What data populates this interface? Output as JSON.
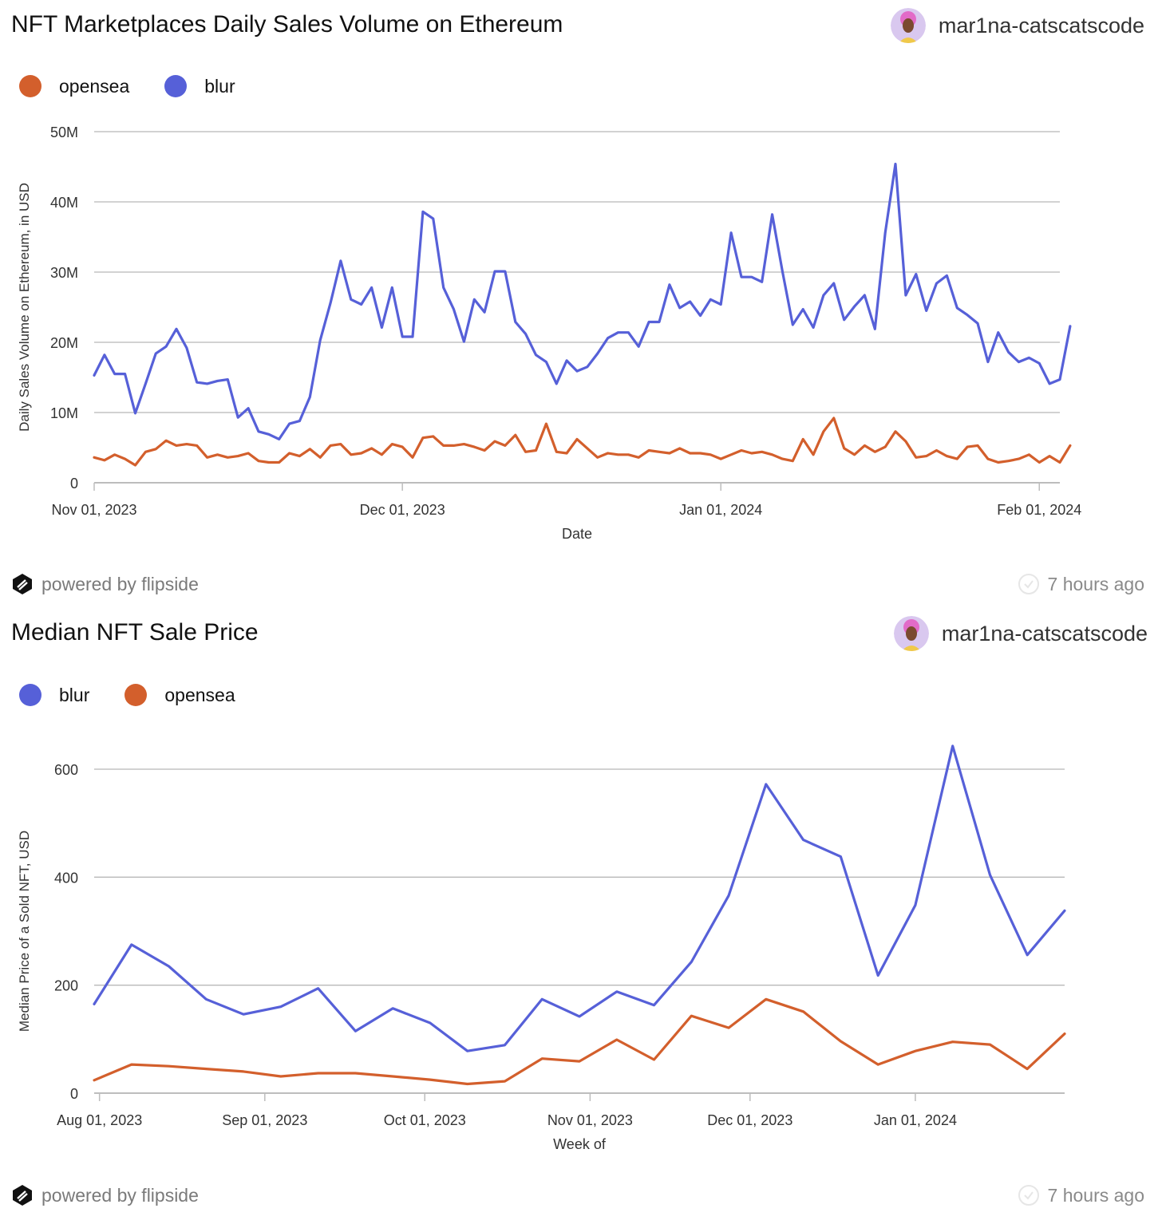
{
  "charts": [
    {
      "title": "NFT Marketplaces Daily Sales Volume on Ethereum",
      "author": "mar1na-catscatscode",
      "legend": [
        {
          "label": "opensea",
          "color": "#d35f2c"
        },
        {
          "label": "blur",
          "color": "#5660d8"
        }
      ],
      "footer": {
        "powered_by": "powered by flipside",
        "updated": "7 hours ago"
      }
    },
    {
      "title": "Median NFT Sale Price",
      "author": "mar1na-catscatscode",
      "legend": [
        {
          "label": "blur",
          "color": "#5660d8"
        },
        {
          "label": "opensea",
          "color": "#d35f2c"
        }
      ],
      "footer": {
        "powered_by": "powered by flipside",
        "updated": "7 hours ago"
      }
    }
  ],
  "chart_data": [
    {
      "type": "line",
      "title": "NFT Marketplaces Daily Sales Volume on Ethereum",
      "xlabel": "Date",
      "ylabel": "Daily Sales Volume on Ethereum, in USD",
      "x_start": "2023-11-01",
      "x_step_days": 1,
      "x_ticks": [
        {
          "label": "Nov 01, 2023",
          "date": "2023-11-01"
        },
        {
          "label": "Dec 01, 2023",
          "date": "2023-12-01"
        },
        {
          "label": "Jan 01, 2024",
          "date": "2024-01-01"
        },
        {
          "label": "Feb 01, 2024",
          "date": "2024-02-01"
        }
      ],
      "x_range": [
        "2023-11-01",
        "2024-02-03"
      ],
      "ylim": [
        0,
        50000000
      ],
      "y_ticks": [
        {
          "label": "0",
          "value": 0
        },
        {
          "label": "10M",
          "value": 10000000
        },
        {
          "label": "20M",
          "value": 20000000
        },
        {
          "label": "30M",
          "value": 30000000
        },
        {
          "label": "40M",
          "value": 40000000
        },
        {
          "label": "50M",
          "value": 50000000
        }
      ],
      "grid": true,
      "legend_position": "top-left",
      "series": [
        {
          "name": "opensea",
          "color": "#d35f2c",
          "values": [
            3.6,
            3.2,
            4.0,
            3.4,
            2.5,
            4.4,
            4.8,
            6.0,
            5.3,
            5.5,
            5.3,
            3.6,
            4.0,
            3.6,
            3.8,
            4.2,
            3.1,
            2.9,
            2.9,
            4.2,
            3.8,
            4.8,
            3.6,
            5.3,
            5.5,
            4.0,
            4.2,
            4.9,
            4.0,
            5.5,
            5.1,
            3.6,
            6.4,
            6.6,
            5.3,
            5.3,
            5.5,
            5.1,
            4.6,
            5.9,
            5.3,
            6.8,
            4.4,
            4.6,
            8.4,
            4.4,
            4.2,
            6.2,
            4.9,
            3.6,
            4.2,
            4.0,
            4.0,
            3.6,
            4.6,
            4.4,
            4.2,
            4.9,
            4.2,
            4.2,
            4.0,
            3.4,
            4.0,
            4.6,
            4.2,
            4.4,
            4.0,
            3.4,
            3.1,
            6.2,
            4.0,
            7.3,
            9.2,
            4.9,
            4.0,
            5.3,
            4.4,
            5.1,
            7.3,
            5.9,
            3.6,
            3.8,
            4.6,
            3.8,
            3.4,
            5.1,
            5.3,
            3.4,
            2.9,
            3.1,
            3.4,
            4.0,
            2.9,
            3.8,
            2.9,
            5.3
          ],
          "unit": "M USD"
        },
        {
          "name": "blur",
          "color": "#5660d8",
          "values": [
            15.3,
            18.2,
            15.5,
            15.5,
            9.9,
            14.1,
            18.4,
            19.4,
            21.9,
            19.2,
            14.3,
            14.1,
            14.5,
            14.7,
            9.3,
            10.6,
            7.3,
            6.9,
            6.2,
            8.4,
            8.8,
            12.2,
            20.3,
            25.6,
            31.6,
            26.1,
            25.4,
            27.8,
            22.1,
            27.8,
            20.8,
            20.8,
            38.6,
            37.6,
            27.8,
            24.7,
            20.1,
            26.1,
            24.3,
            30.1,
            30.1,
            22.9,
            21.2,
            18.2,
            17.2,
            14.1,
            17.4,
            15.9,
            16.5,
            18.4,
            20.6,
            21.4,
            21.4,
            19.4,
            22.9,
            22.9,
            28.2,
            24.9,
            25.8,
            23.8,
            26.1,
            25.4,
            35.6,
            29.3,
            29.3,
            28.6,
            38.2,
            30.1,
            22.5,
            24.7,
            22.1,
            26.7,
            28.4,
            23.2,
            25.1,
            26.7,
            21.9,
            35.6,
            45.4,
            26.7,
            29.7,
            24.5,
            28.4,
            29.5,
            24.9,
            23.9,
            22.7,
            17.2,
            21.4,
            18.6,
            17.2,
            17.8,
            17.0,
            14.1,
            14.7,
            22.3
          ],
          "unit": "M USD"
        }
      ]
    },
    {
      "type": "line",
      "title": "Median NFT Sale Price",
      "xlabel": "Week of",
      "ylabel": "Median Price of a Sold NFT, USD",
      "x": [
        "2023-07-31",
        "2023-08-07",
        "2023-08-14",
        "2023-08-21",
        "2023-08-28",
        "2023-09-04",
        "2023-09-11",
        "2023-09-18",
        "2023-09-25",
        "2023-10-02",
        "2023-10-09",
        "2023-10-16",
        "2023-10-23",
        "2023-10-30",
        "2023-11-06",
        "2023-11-13",
        "2023-11-20",
        "2023-11-27",
        "2023-12-04",
        "2023-12-11",
        "2023-12-18",
        "2023-12-25",
        "2024-01-01",
        "2024-01-08",
        "2024-01-15",
        "2024-01-22",
        "2024-01-29"
      ],
      "x_ticks": [
        {
          "label": "Aug 01, 2023",
          "date": "2023-08-01"
        },
        {
          "label": "Sep 01, 2023",
          "date": "2023-09-01"
        },
        {
          "label": "Oct 01, 2023",
          "date": "2023-10-01"
        },
        {
          "label": "Nov 01, 2023",
          "date": "2023-11-01"
        },
        {
          "label": "Dec 01, 2023",
          "date": "2023-12-01"
        },
        {
          "label": "Jan 01, 2024",
          "date": "2024-01-01"
        }
      ],
      "ylim": [
        0,
        600
      ],
      "y_ticks": [
        {
          "label": "0",
          "value": 0
        },
        {
          "label": "200",
          "value": 200
        },
        {
          "label": "400",
          "value": 400
        },
        {
          "label": "600",
          "value": 600
        }
      ],
      "grid": true,
      "legend_position": "top-left",
      "series": [
        {
          "name": "blur",
          "color": "#5660d8",
          "values": [
            165,
            275,
            235,
            174,
            146,
            160,
            194,
            115,
            157,
            130,
            78,
            89,
            174,
            142,
            188,
            163,
            243,
            366,
            572,
            469,
            438,
            218,
            348,
            643,
            404,
            256,
            338
          ]
        },
        {
          "name": "opensea",
          "color": "#d35f2c",
          "values": [
            24,
            53,
            50,
            45,
            40,
            31,
            37,
            37,
            31,
            25,
            17,
            22,
            64,
            59,
            99,
            62,
            143,
            121,
            174,
            151,
            96,
            53,
            78,
            95,
            90,
            45,
            110
          ]
        }
      ]
    }
  ]
}
